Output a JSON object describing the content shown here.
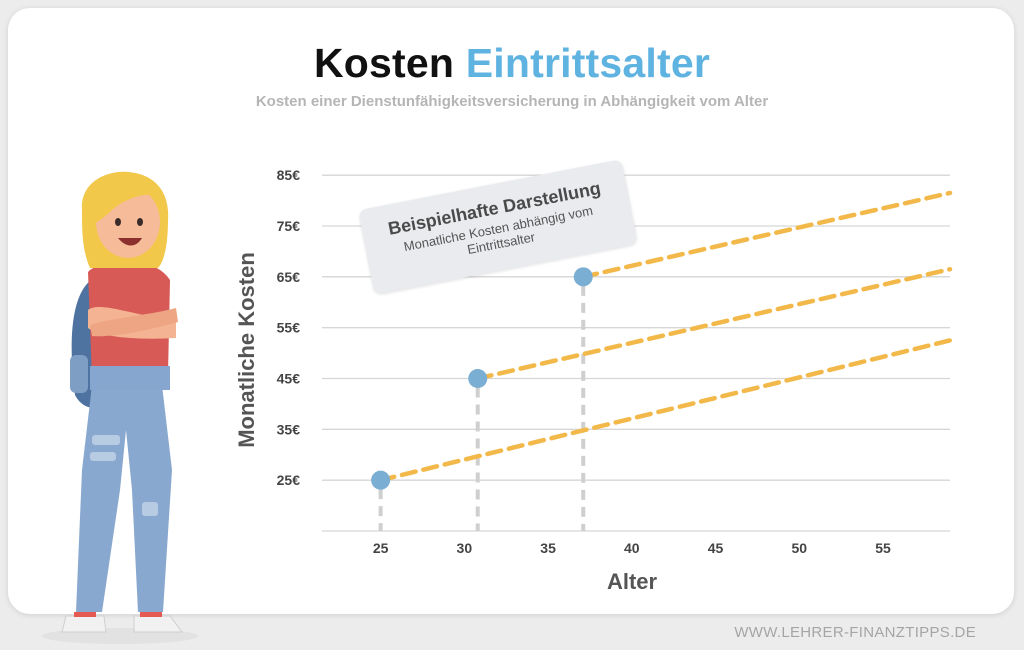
{
  "header": {
    "title_part1": "Kosten",
    "title_part2": "Eintrittsalter",
    "subtitle": "Kosten einer Dienstunfähigkeitsversicherung in Abhängigkeit vom Alter"
  },
  "note": {
    "heading": "Beispielhafte Darstellung",
    "text": "Monatliche Kosten abhängig vom Eintrittsalter"
  },
  "footer": {
    "watermark": "WWW.LEHRER-FINANZTIPPS.DE"
  },
  "colors": {
    "accent": "#5fb3e0",
    "line": "#f2b94a",
    "point": "#7aaed3",
    "grid": "#d6d6d6"
  },
  "chart_data": {
    "type": "line",
    "xlabel": "Alter",
    "ylabel": "Monatliche Kosten",
    "xlim": [
      21.5,
      59
    ],
    "ylim": [
      15,
      87
    ],
    "xticks": [
      25,
      30,
      35,
      40,
      45,
      50,
      55
    ],
    "yticks": [
      25,
      35,
      45,
      55,
      65,
      75,
      85
    ],
    "ytick_labels": [
      "25€",
      "35€",
      "45€",
      "55€",
      "65€",
      "75€",
      "85€"
    ],
    "grid": true,
    "series": [
      {
        "points": [
          [
            25,
            25
          ],
          [
            59,
            52.5
          ]
        ]
      },
      {
        "points": [
          [
            30.8,
            45
          ],
          [
            59,
            66.5
          ]
        ]
      },
      {
        "points": [
          [
            37.1,
            65
          ],
          [
            59,
            81.5
          ]
        ]
      }
    ],
    "markers": [
      [
        25,
        25
      ],
      [
        30.8,
        45
      ],
      [
        37.1,
        65
      ]
    ]
  }
}
